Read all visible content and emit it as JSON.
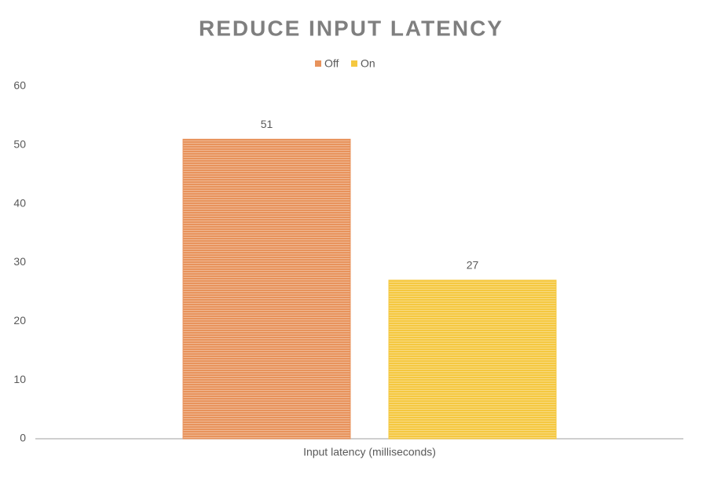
{
  "chart_data": {
    "type": "bar",
    "title": "REDUCE INPUT LATENCY",
    "categories": [
      "Input latency (milliseconds)"
    ],
    "series": [
      {
        "name": "Off",
        "color": "#e8935c",
        "values": [
          51
        ]
      },
      {
        "name": "On",
        "color": "#f5c840",
        "values": [
          27
        ]
      }
    ],
    "ylim": [
      0,
      60
    ],
    "yticks": [
      0,
      10,
      20,
      30,
      40,
      50,
      60
    ],
    "grid": false,
    "legend": "top"
  }
}
